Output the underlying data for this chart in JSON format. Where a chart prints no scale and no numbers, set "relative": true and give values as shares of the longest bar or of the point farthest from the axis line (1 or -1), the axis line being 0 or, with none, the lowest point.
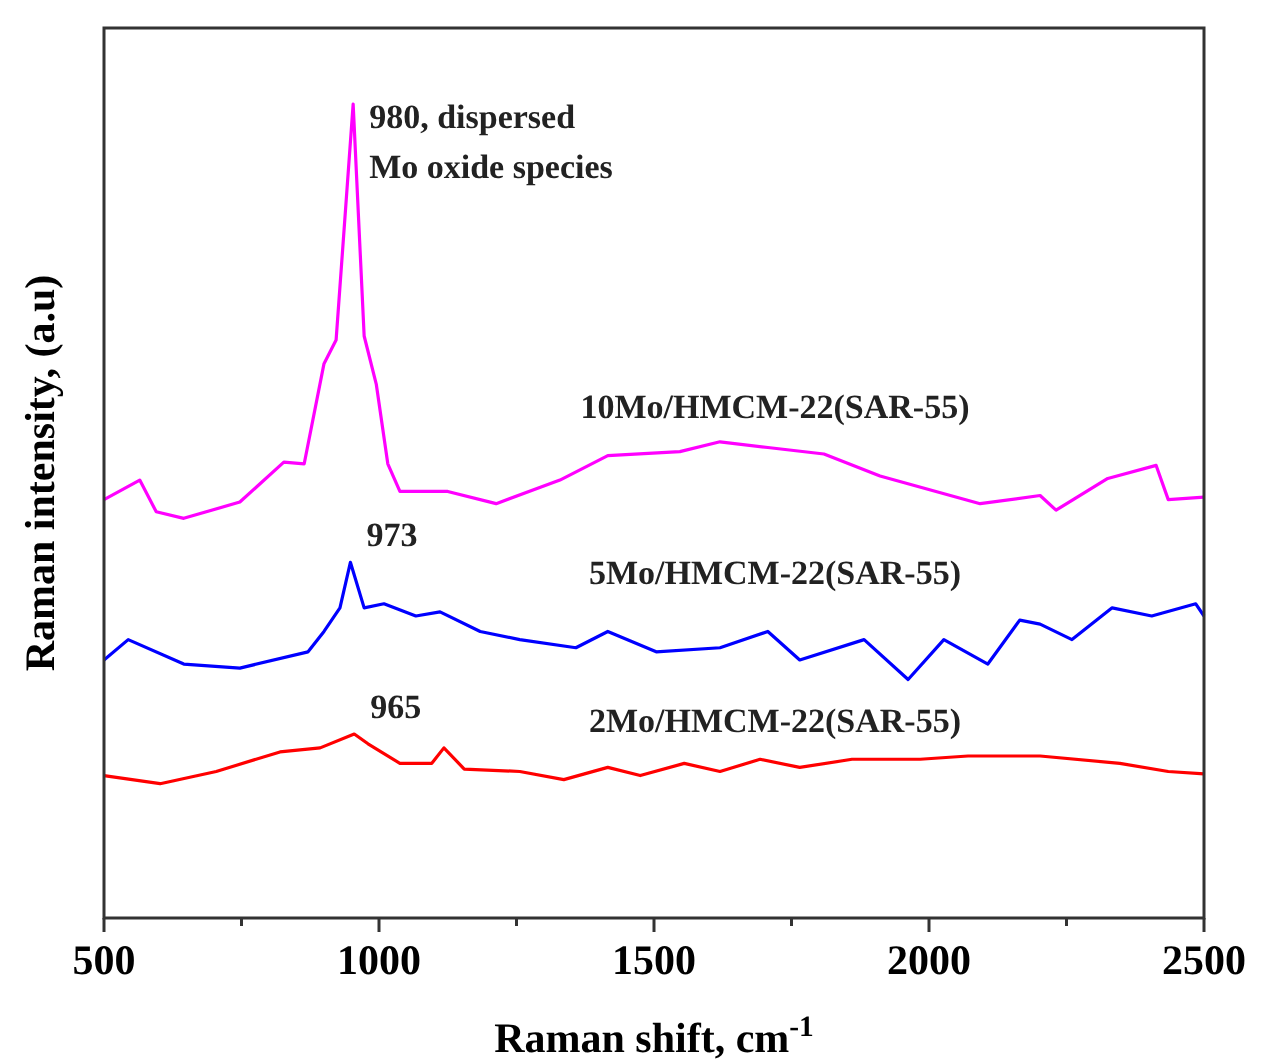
{
  "chart_data": {
    "type": "line",
    "relative": true,
    "xlabel": "Raman shift, cm$^{-1}$",
    "ylabel": "Raman intensity, (a.u)",
    "xlim": [
      500,
      2500
    ],
    "xticks": [
      500,
      {
        "value": 750,
        "label": null
      },
      1000,
      {
        "value": 1250,
        "label": null
      },
      1500,
      {
        "value": 1750,
        "label": null
      },
      2000,
      {
        "value": 2250,
        "label": null
      },
      2500
    ],
    "grid": false,
    "legend": false,
    "marker": "none",
    "line_style": "solid",
    "annotations": [
      {
        "text": "980, dispersed\nMo oxide species",
        "x": 953,
        "y": 1
      },
      {
        "text": "973",
        "x": 948,
        "y": 0.437
      },
      {
        "text": "965",
        "x": 955,
        "y": 0.226
      }
    ],
    "series": [
      {
        "name": "10Mo/HMCM-22(SAR-55)",
        "color": "#ff00ff",
        "x": [
          500,
          565,
          595,
          645,
          747,
          827,
          864,
          900,
          922,
          953,
          973,
          995,
          1016,
          1038,
          1125,
          1213,
          1329,
          1416,
          1547,
          1620,
          1707,
          1809,
          1911,
          2093,
          2202,
          2231,
          2325,
          2413,
          2435,
          2500
        ],
        "values": [
          0.514,
          0.538,
          0.499,
          0.491,
          0.511,
          0.56,
          0.558,
          0.681,
          0.71,
          1,
          0.715,
          0.656,
          0.558,
          0.524,
          0.524,
          0.509,
          0.538,
          0.568,
          0.573,
          0.585,
          0.578,
          0.57,
          0.543,
          0.509,
          0.519,
          0.501,
          0.54,
          0.556,
          0.514,
          0.517
        ]
      },
      {
        "name": "5Mo/HMCM-22(SAR-55)",
        "color": "#0000ff",
        "x": [
          500,
          544,
          645,
          747,
          871,
          900,
          929,
          948,
          973,
          1009,
          1067,
          1111,
          1184,
          1256,
          1358,
          1416,
          1504,
          1620,
          1707,
          1765,
          1882,
          1962,
          2027,
          2107,
          2165,
          2202,
          2260,
          2333,
          2405,
          2485,
          2500
        ],
        "values": [
          0.317,
          0.342,
          0.312,
          0.307,
          0.327,
          0.352,
          0.381,
          0.437,
          0.381,
          0.386,
          0.371,
          0.376,
          0.352,
          0.342,
          0.332,
          0.352,
          0.327,
          0.332,
          0.352,
          0.317,
          0.342,
          0.293,
          0.342,
          0.312,
          0.366,
          0.361,
          0.342,
          0.381,
          0.371,
          0.386,
          0.371
        ]
      },
      {
        "name": "2Mo/HMCM-22(SAR-55)",
        "color": "#ff0000",
        "x": [
          500,
          602,
          704,
          820,
          893,
          955,
          980,
          1038,
          1096,
          1118,
          1155,
          1256,
          1336,
          1416,
          1475,
          1555,
          1620,
          1693,
          1765,
          1860,
          1984,
          2071,
          2202,
          2347,
          2435,
          2500
        ],
        "values": [
          0.175,
          0.165,
          0.18,
          0.204,
          0.209,
          0.226,
          0.214,
          0.19,
          0.19,
          0.209,
          0.183,
          0.18,
          0.17,
          0.185,
          0.175,
          0.19,
          0.18,
          0.195,
          0.185,
          0.195,
          0.195,
          0.199,
          0.199,
          0.19,
          0.18,
          0.177
        ]
      }
    ]
  }
}
